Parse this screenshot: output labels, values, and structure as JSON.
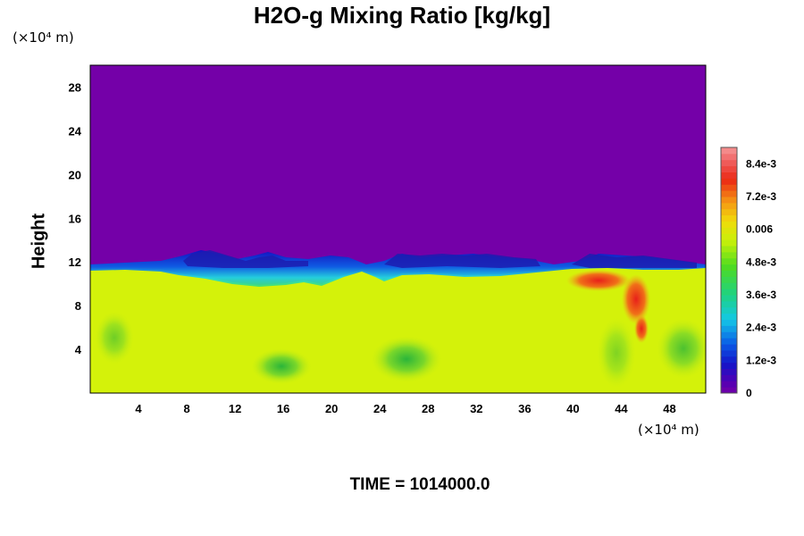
{
  "chart_data": {
    "type": "heatmap",
    "title": "H2O-g Mixing Ratio [kg/kg]",
    "ylabel": "Height",
    "xlabel": "",
    "x_unit_label": "(×10⁴ m)",
    "y_unit_label": "(×10⁴ m)",
    "xlim": [
      0,
      51
    ],
    "ylim": [
      0,
      30
    ],
    "x_ticks": [
      "4",
      "8",
      "12",
      "16",
      "20",
      "24",
      "28",
      "32",
      "36",
      "40",
      "44",
      "48"
    ],
    "y_ticks": [
      "4",
      "8",
      "12",
      "16",
      "20",
      "24",
      "28"
    ],
    "colorbar": {
      "range": [
        0,
        0.009
      ],
      "ticks": [
        {
          "value": 0,
          "label": "0"
        },
        {
          "value": 0.0012,
          "label": "1.2e-3"
        },
        {
          "value": 0.0024,
          "label": "2.4e-3"
        },
        {
          "value": 0.0036,
          "label": "3.6e-3"
        },
        {
          "value": 0.0048,
          "label": "4.8e-3"
        },
        {
          "value": 0.006,
          "label": "0.006"
        },
        {
          "value": 0.0072,
          "label": "7.2e-3"
        },
        {
          "value": 0.0084,
          "label": "8.4e-3"
        }
      ]
    },
    "fields": {
      "upper_region_value": 0.0,
      "lower_region_value": 0.0058,
      "boundary_height_approx": 11.5
    },
    "footer": "TIME = 1014000.0"
  },
  "colors": {
    "upper_purple": "#7400a8",
    "lower_yellow": "#d4f20a"
  }
}
